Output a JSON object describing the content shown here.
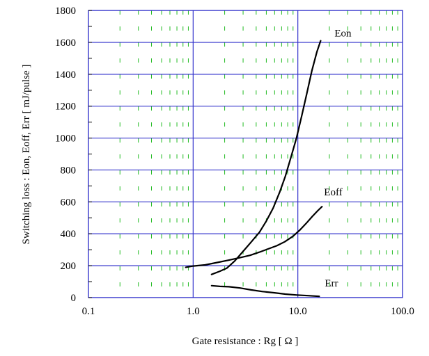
{
  "chart_data": {
    "type": "line",
    "xscale": "log",
    "xlim": [
      0.1,
      100.0
    ],
    "ylim": [
      0,
      1800
    ],
    "xlabel": "Gate resistance  :  Rg  [ Ω ]",
    "ylabel": "Switching loss  :  Eon, Eoff, Err  [ mJ/pulse ]",
    "x_ticks": [
      "0.1",
      "1.0",
      "10.0",
      "100.0"
    ],
    "y_ticks": [
      "0",
      "200",
      "400",
      "600",
      "800",
      "1000",
      "1200",
      "1400",
      "1600",
      "1800"
    ],
    "grid": true,
    "major_grid_color": "#3333cc",
    "minor_grid_color": "#22bb22",
    "line_color": "#000000",
    "series": [
      {
        "name": "Eon",
        "points": [
          [
            1.5,
            145
          ],
          [
            1.8,
            165
          ],
          [
            2.1,
            185
          ],
          [
            2.5,
            230
          ],
          [
            3.0,
            290
          ],
          [
            3.6,
            350
          ],
          [
            4.3,
            410
          ],
          [
            5.0,
            480
          ],
          [
            5.8,
            560
          ],
          [
            6.7,
            660
          ],
          [
            7.6,
            760
          ],
          [
            8.6,
            880
          ],
          [
            9.7,
            1000
          ],
          [
            10.9,
            1140
          ],
          [
            12.2,
            1280
          ],
          [
            13.6,
            1420
          ],
          [
            15.2,
            1540
          ],
          [
            16.5,
            1610
          ]
        ]
      },
      {
        "name": "Eoff",
        "points": [
          [
            0.85,
            190
          ],
          [
            1.0,
            198
          ],
          [
            1.3,
            205
          ],
          [
            1.7,
            220
          ],
          [
            2.2,
            235
          ],
          [
            2.8,
            250
          ],
          [
            3.5,
            265
          ],
          [
            4.3,
            285
          ],
          [
            5.2,
            305
          ],
          [
            6.3,
            325
          ],
          [
            7.5,
            350
          ],
          [
            9.0,
            385
          ],
          [
            10.5,
            425
          ],
          [
            12.0,
            465
          ],
          [
            13.8,
            510
          ],
          [
            15.5,
            545
          ],
          [
            17.0,
            570
          ]
        ]
      },
      {
        "name": "Err",
        "points": [
          [
            1.5,
            75
          ],
          [
            1.8,
            70
          ],
          [
            2.2,
            68
          ],
          [
            2.8,
            60
          ],
          [
            3.6,
            48
          ],
          [
            4.6,
            38
          ],
          [
            6.0,
            30
          ],
          [
            7.6,
            22
          ],
          [
            9.8,
            16
          ],
          [
            12.5,
            12
          ],
          [
            16.0,
            8
          ]
        ]
      }
    ]
  }
}
